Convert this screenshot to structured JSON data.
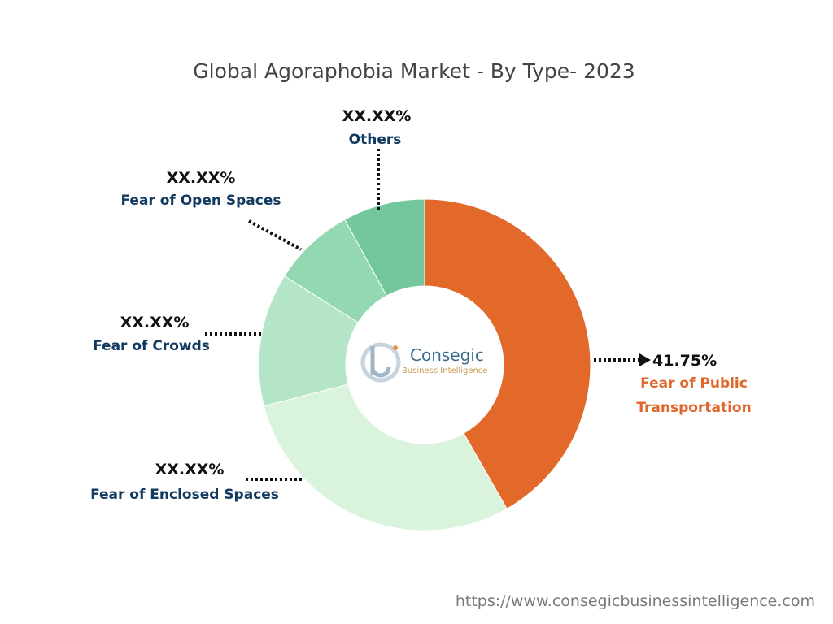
{
  "chart_data": {
    "type": "pie",
    "variant": "donut",
    "title": "Global Agoraphobia Market - By Type- 2023",
    "series": [
      {
        "name": "Fear of Public Transportation",
        "value": 41.75,
        "label": "41.75%",
        "label_lines": [
          "Fear of Public",
          "Transportation"
        ],
        "color": "#e2692a"
      },
      {
        "name": "Fear of Enclosed Spaces",
        "value": 29.25,
        "label": "XX.XX%",
        "label_lines": [
          "Fear of Enclosed Spaces"
        ],
        "color": "#daf3dd"
      },
      {
        "name": "Fear of Crowds",
        "value": 13.0,
        "label": "XX.XX%",
        "label_lines": [
          "Fear of Crowds"
        ],
        "color": "#b3e5c6"
      },
      {
        "name": "Fear of Open Spaces",
        "value": 8.0,
        "label": "XX.XX%",
        "label_lines": [
          "Fear of Open Spaces"
        ],
        "color": "#93d8b0"
      },
      {
        "name": "Others",
        "value": 8.0,
        "label": "XX.XX%",
        "label_lines": [
          "Others"
        ],
        "color": "#74c69d"
      }
    ]
  },
  "logo": {
    "name": "Consegic",
    "tagline": "Business Intelligence"
  },
  "footer": {
    "url": "https://www.consegicbusinessintelligence.com"
  }
}
